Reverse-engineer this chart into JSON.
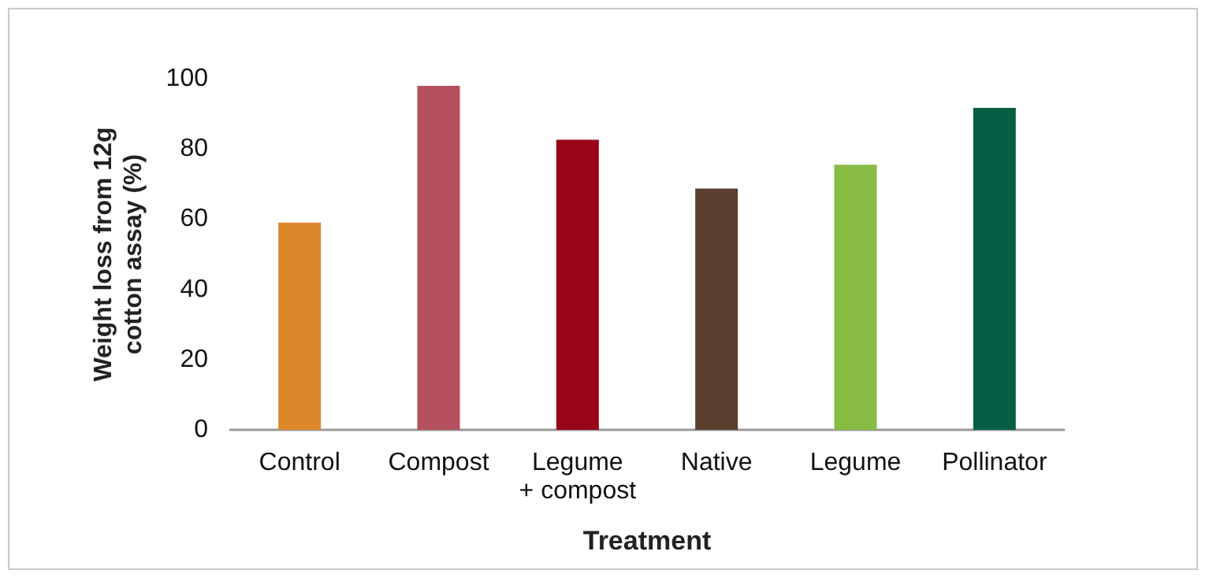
{
  "chart_data": {
    "type": "bar",
    "xlabel": "Treatment",
    "ylabel": "Weight loss from 12g\ncotton assay (%)",
    "categories": [
      "Control",
      "Compost",
      "Legume\n+ compost",
      "Native",
      "Legume",
      "Pollinator"
    ],
    "values": [
      59,
      98,
      82.6,
      68.7,
      75.5,
      91.7
    ],
    "colors": [
      "#dd862c",
      "#b5505d",
      "#990419",
      "#5a3e2f",
      "#87bb44",
      "#065f45"
    ],
    "ylim": [
      0,
      100
    ],
    "yticks": [
      0,
      20,
      40,
      60,
      80,
      100
    ],
    "grid": false
  }
}
